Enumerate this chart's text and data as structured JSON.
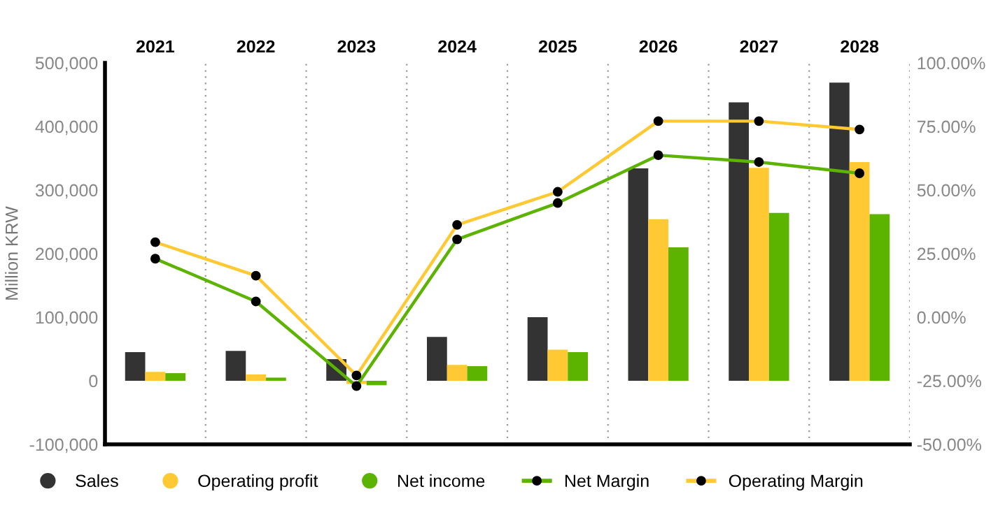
{
  "chart_data": {
    "type": "bar",
    "categories": [
      "2021",
      "2022",
      "2023",
      "2024",
      "2025",
      "2026",
      "2027",
      "2028"
    ],
    "ylabel": "Million KRW",
    "series": [
      {
        "name": "Sales",
        "color": "#333333",
        "values": [
          45000,
          47000,
          34000,
          69000,
          100000,
          334000,
          438000,
          469000
        ]
      },
      {
        "name": "Operating profit",
        "color": "#ffc933",
        "values": [
          14000,
          10000,
          -5000,
          25000,
          49000,
          254000,
          335000,
          344000
        ]
      },
      {
        "name": "Net income",
        "color": "#5cb300",
        "values": [
          12000,
          5000,
          -7000,
          23000,
          45000,
          210000,
          264000,
          262000
        ]
      },
      {
        "name": "Net Margin",
        "type": "line",
        "axis": "y2",
        "color": "#5cb300",
        "values": [
          23,
          6.2,
          -27.1,
          30.6,
          44.9,
          63.7,
          61,
          56.6
        ]
      },
      {
        "name": "Operating Margin",
        "type": "line",
        "axis": "y2",
        "color": "#ffc933",
        "values": [
          29.5,
          16.3,
          -22.9,
          36.3,
          49.3,
          77.1,
          77.1,
          73.8
        ]
      }
    ],
    "ylim": [
      -100000,
      500000
    ],
    "yticks": [
      {
        "value": -100000,
        "label": "-100,000"
      },
      {
        "value": 0,
        "label": "0"
      },
      {
        "value": 100000,
        "label": "100,000"
      },
      {
        "value": 200000,
        "label": "200,000"
      },
      {
        "value": 300000,
        "label": "300,000"
      },
      {
        "value": 400000,
        "label": "400,000"
      },
      {
        "value": 500000,
        "label": "500,000"
      }
    ],
    "y2lim": [
      -50,
      100
    ],
    "y2ticks": [
      {
        "value": -50,
        "label": "-50.00%"
      },
      {
        "value": -25,
        "label": "-25.00%"
      },
      {
        "value": 0,
        "label": "0.00%"
      },
      {
        "value": 25,
        "label": "25.00%"
      },
      {
        "value": 50,
        "label": "50.00%"
      },
      {
        "value": 75,
        "label": "75.00%"
      },
      {
        "value": 100,
        "label": "100.00%"
      }
    ],
    "grid": "x",
    "legend": "bottom",
    "marker": "circle"
  }
}
